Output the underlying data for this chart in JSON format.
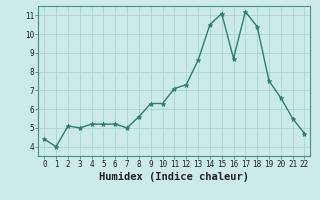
{
  "x": [
    0,
    1,
    2,
    3,
    4,
    5,
    6,
    7,
    8,
    9,
    10,
    11,
    12,
    13,
    14,
    15,
    16,
    17,
    18,
    19,
    20,
    21,
    22
  ],
  "y": [
    4.4,
    4.0,
    5.1,
    5.0,
    5.2,
    5.2,
    5.2,
    5.0,
    5.6,
    6.3,
    6.3,
    7.1,
    7.3,
    8.6,
    10.5,
    11.1,
    8.7,
    11.2,
    10.4,
    7.5,
    6.6,
    5.5,
    4.7
  ],
  "line_color": "#2e7d6e",
  "marker": "*",
  "marker_color": "#2e7d6e",
  "bg_color": "#cceae8",
  "grid_color": "#aad4d0",
  "xlabel": "Humidex (Indice chaleur)",
  "xlim": [
    -0.5,
    22.5
  ],
  "ylim": [
    3.5,
    11.5
  ],
  "yticks": [
    4,
    5,
    6,
    7,
    8,
    9,
    10,
    11
  ],
  "xticks": [
    0,
    1,
    2,
    3,
    4,
    5,
    6,
    7,
    8,
    9,
    10,
    11,
    12,
    13,
    14,
    15,
    16,
    17,
    18,
    19,
    20,
    21,
    22
  ],
  "tick_fontsize": 5.5,
  "xlabel_fontsize": 7.5,
  "marker_size": 3.5,
  "linewidth": 1.0
}
